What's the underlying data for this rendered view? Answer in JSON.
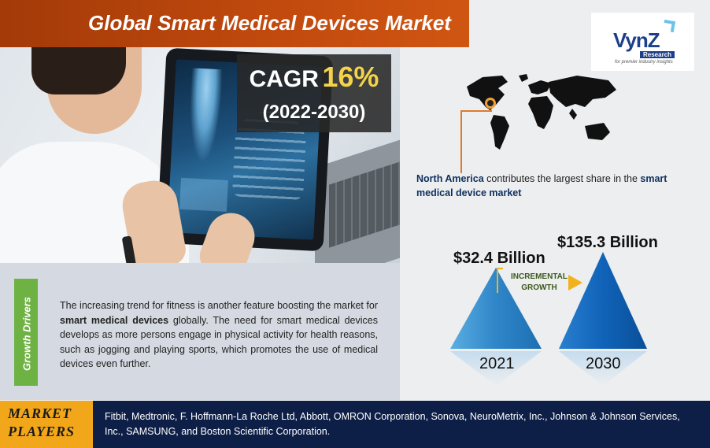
{
  "title": "Global Smart Medical Devices Market",
  "cagr": {
    "label": "CAGR",
    "value": "16%",
    "period": "(2022-2030)"
  },
  "logo": {
    "name": "VynZ",
    "sub": "Research",
    "tagline": "for premier industry insights"
  },
  "region": {
    "highlight": "North America",
    "text_mid": " contributes the largest share in the ",
    "text_bold": "smart medical device market"
  },
  "growth_drivers": {
    "label": "Growth Drivers",
    "text_part1": "The increasing trend for fitness is another feature boosting the market for ",
    "text_bold": "smart medical devices",
    "text_part2": " globally. The need for smart medical devices develops as more persons engage in physical activity for health reasons, such as jogging and playing sports, which promotes the use of medical devices even further."
  },
  "market_size": {
    "incremental_label_1": "INCREMENTAL",
    "incremental_label_2": "GROWTH",
    "items": [
      {
        "year": "2021",
        "value": "$32.4 Billion"
      },
      {
        "year": "2030",
        "value": "$135.3 Billion"
      }
    ]
  },
  "market_players": {
    "label_1": "MARKET",
    "label_2": "PLAYERS",
    "text": "Fitbit, Medtronic, F. Hoffmann-La Roche Ltd, Abbott, OMRON Corporation, Sonova, NeuroMetrix, Inc., Johnson & Johnson Services, Inc., SAMSUNG, and Boston Scientific Corporation."
  },
  "colors": {
    "title_banner": "#c24a0e",
    "accent_gold": "#f4d24a",
    "growth_green": "#6fb244",
    "footer_navy": "#0e1f47",
    "players_orange": "#f2a71b",
    "triangle_light": "#3d8fd0",
    "triangle_dark": "#1463b8"
  }
}
